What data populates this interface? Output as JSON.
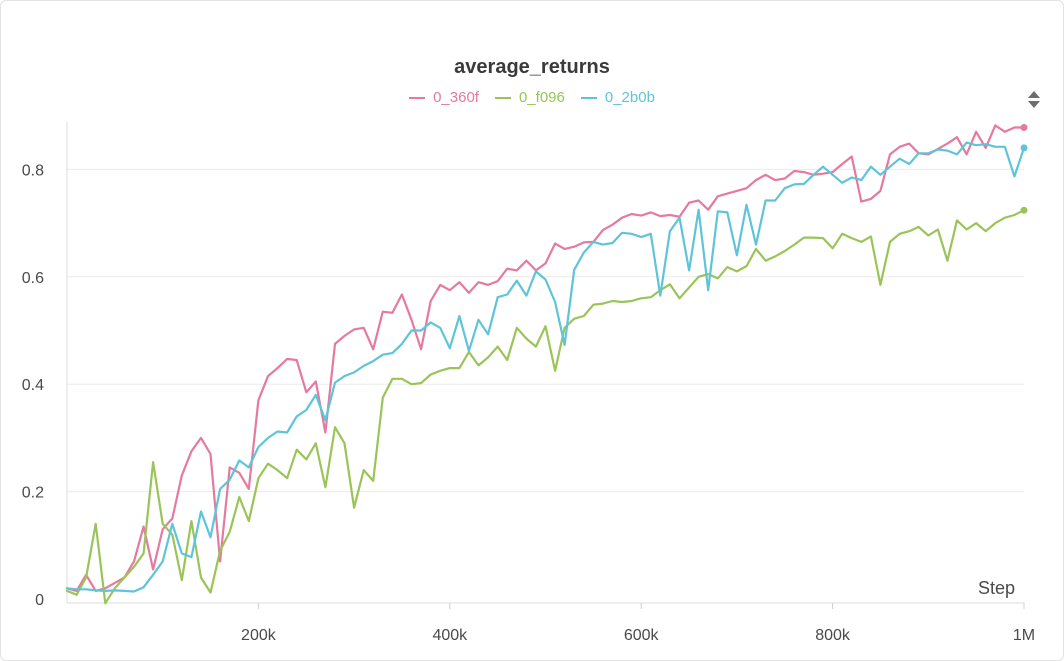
{
  "chart_data": {
    "type": "line",
    "title": "average_returns",
    "xlabel": "Step",
    "ylabel": "",
    "xlim": [
      0,
      1000000
    ],
    "ylim": [
      0,
      0.88
    ],
    "grid": true,
    "legend_position": "top-center",
    "x_ticks": [
      200000,
      400000,
      600000,
      800000,
      1000000
    ],
    "x_tick_labels": [
      "200k",
      "400k",
      "600k",
      "800k",
      "1M"
    ],
    "y_ticks": [
      0,
      0.2,
      0.4,
      0.6,
      0.8
    ],
    "y_tick_labels": [
      "0",
      "0.2",
      "0.4",
      "0.6",
      "0.8"
    ],
    "x": [
      0,
      10000,
      20000,
      30000,
      40000,
      50000,
      60000,
      70000,
      80000,
      90000,
      100000,
      110000,
      120000,
      130000,
      140000,
      150000,
      160000,
      170000,
      180000,
      190000,
      200000,
      210000,
      220000,
      230000,
      240000,
      250000,
      260000,
      270000,
      280000,
      290000,
      300000,
      310000,
      320000,
      330000,
      340000,
      350000,
      360000,
      370000,
      380000,
      390000,
      400000,
      410000,
      420000,
      430000,
      440000,
      450000,
      460000,
      470000,
      480000,
      490000,
      500000,
      510000,
      520000,
      530000,
      540000,
      550000,
      560000,
      570000,
      580000,
      590000,
      600000,
      610000,
      620000,
      630000,
      640000,
      650000,
      660000,
      670000,
      680000,
      690000,
      700000,
      710000,
      720000,
      730000,
      740000,
      750000,
      760000,
      770000,
      780000,
      790000,
      800000,
      810000,
      820000,
      830000,
      840000,
      850000,
      860000,
      870000,
      880000,
      890000,
      900000,
      910000,
      920000,
      930000,
      940000,
      950000,
      960000,
      970000,
      980000,
      990000,
      1000000
    ],
    "series": [
      {
        "name": "0_360f",
        "color": "#e5799f",
        "values": [
          0.02,
          0.015,
          0.045,
          0.015,
          0.02,
          0.03,
          0.04,
          0.07,
          0.135,
          0.055,
          0.13,
          0.15,
          0.23,
          0.275,
          0.3,
          0.27,
          0.07,
          0.245,
          0.235,
          0.205,
          0.37,
          0.415,
          0.43,
          0.447,
          0.445,
          0.385,
          0.405,
          0.31,
          0.475,
          0.49,
          0.502,
          0.505,
          0.465,
          0.535,
          0.533,
          0.567,
          0.52,
          0.465,
          0.555,
          0.585,
          0.575,
          0.59,
          0.57,
          0.59,
          0.585,
          0.592,
          0.615,
          0.612,
          0.63,
          0.612,
          0.625,
          0.662,
          0.652,
          0.656,
          0.664,
          0.665,
          0.687,
          0.697,
          0.71,
          0.717,
          0.714,
          0.72,
          0.713,
          0.715,
          0.712,
          0.738,
          0.742,
          0.725,
          0.75,
          0.755,
          0.76,
          0.765,
          0.78,
          0.79,
          0.78,
          0.783,
          0.797,
          0.795,
          0.79,
          0.792,
          0.795,
          0.81,
          0.824,
          0.74,
          0.745,
          0.76,
          0.828,
          0.842,
          0.848,
          0.83,
          0.828,
          0.838,
          0.848,
          0.86,
          0.828,
          0.87,
          0.84,
          0.882,
          0.87,
          0.878,
          0.878
        ]
      },
      {
        "name": "0_f096",
        "color": "#9bc458",
        "values": [
          0.015,
          0.008,
          0.04,
          0.14,
          -0.008,
          0.02,
          0.04,
          0.06,
          0.085,
          0.255,
          0.14,
          0.12,
          0.035,
          0.145,
          0.04,
          0.012,
          0.09,
          0.125,
          0.19,
          0.145,
          0.225,
          0.252,
          0.24,
          0.225,
          0.278,
          0.26,
          0.29,
          0.208,
          0.32,
          0.29,
          0.17,
          0.24,
          0.22,
          0.375,
          0.41,
          0.41,
          0.4,
          0.402,
          0.418,
          0.425,
          0.43,
          0.43,
          0.46,
          0.435,
          0.45,
          0.47,
          0.445,
          0.505,
          0.485,
          0.47,
          0.508,
          0.425,
          0.505,
          0.522,
          0.527,
          0.548,
          0.55,
          0.555,
          0.553,
          0.555,
          0.56,
          0.562,
          0.575,
          0.586,
          0.56,
          0.58,
          0.6,
          0.605,
          0.597,
          0.618,
          0.61,
          0.62,
          0.652,
          0.63,
          0.638,
          0.648,
          0.66,
          0.673,
          0.673,
          0.672,
          0.653,
          0.68,
          0.672,
          0.665,
          0.675,
          0.585,
          0.665,
          0.68,
          0.685,
          0.693,
          0.677,
          0.688,
          0.63,
          0.705,
          0.688,
          0.7,
          0.685,
          0.7,
          0.71,
          0.715,
          0.724
        ]
      },
      {
        "name": "0_2b0b",
        "color": "#5ec4d9",
        "values": [
          0.02,
          0.018,
          0.018,
          0.016,
          0.015,
          0.016,
          0.015,
          0.014,
          0.022,
          0.045,
          0.07,
          0.14,
          0.085,
          0.078,
          0.163,
          0.115,
          0.205,
          0.222,
          0.258,
          0.245,
          0.283,
          0.3,
          0.312,
          0.31,
          0.34,
          0.352,
          0.38,
          0.333,
          0.403,
          0.415,
          0.422,
          0.434,
          0.443,
          0.455,
          0.458,
          0.475,
          0.5,
          0.5,
          0.515,
          0.505,
          0.467,
          0.527,
          0.462,
          0.52,
          0.493,
          0.562,
          0.567,
          0.593,
          0.565,
          0.61,
          0.595,
          0.553,
          0.473,
          0.613,
          0.645,
          0.665,
          0.66,
          0.663,
          0.682,
          0.68,
          0.674,
          0.68,
          0.565,
          0.685,
          0.71,
          0.612,
          0.725,
          0.575,
          0.722,
          0.72,
          0.64,
          0.734,
          0.66,
          0.742,
          0.742,
          0.765,
          0.772,
          0.773,
          0.79,
          0.805,
          0.79,
          0.775,
          0.785,
          0.78,
          0.805,
          0.79,
          0.805,
          0.82,
          0.81,
          0.83,
          0.83,
          0.837,
          0.835,
          0.828,
          0.85,
          0.845,
          0.847,
          0.842,
          0.842,
          0.787,
          0.84
        ]
      }
    ]
  }
}
